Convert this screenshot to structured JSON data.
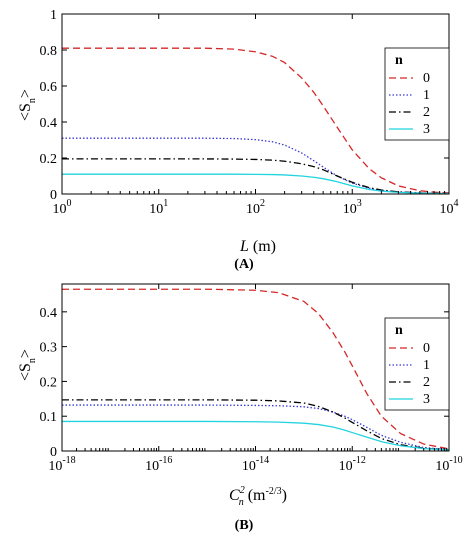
{
  "chart_data": [
    {
      "type": "line",
      "panel_label": "(A)",
      "xscale": "log",
      "xlim": [
        1,
        10000
      ],
      "xticks": [
        {
          "base": "10",
          "exp": "0",
          "value": 1
        },
        {
          "base": "10",
          "exp": "1",
          "value": 10
        },
        {
          "base": "10",
          "exp": "2",
          "value": 100
        },
        {
          "base": "10",
          "exp": "3",
          "value": 1000
        },
        {
          "base": "10",
          "exp": "4",
          "value": 10000
        }
      ],
      "ylim": [
        0,
        1
      ],
      "yticks": [
        "0",
        "0.2",
        "0.4",
        "0.6",
        "0.8",
        "1"
      ],
      "xlabel": {
        "main": "L",
        "unit": " (m)"
      },
      "ylabel": {
        "open": "<S",
        "sub": "n",
        "close": ">"
      },
      "grid": false,
      "legend": {
        "title": "n",
        "position": "top-right"
      },
      "series": [
        {
          "name": "0",
          "color": "#d62728",
          "dash": "dashed",
          "x": [
            1,
            10,
            30,
            60,
            100,
            150,
            200,
            300,
            400,
            500,
            700,
            1000,
            1500,
            2000,
            3000,
            5000,
            7000,
            10000
          ],
          "y": [
            0.81,
            0.81,
            0.81,
            0.805,
            0.79,
            0.765,
            0.73,
            0.645,
            0.565,
            0.49,
            0.37,
            0.245,
            0.14,
            0.09,
            0.045,
            0.018,
            0.01,
            0.006
          ]
        },
        {
          "name": "1",
          "color": "#3a3ad6",
          "dash": "dotted",
          "x": [
            1,
            10,
            30,
            60,
            100,
            150,
            200,
            300,
            400,
            500,
            700,
            1000,
            1500,
            2000,
            3000,
            5000,
            7000,
            10000
          ],
          "y": [
            0.31,
            0.31,
            0.31,
            0.308,
            0.302,
            0.29,
            0.272,
            0.228,
            0.185,
            0.15,
            0.1,
            0.06,
            0.032,
            0.02,
            0.011,
            0.006,
            0.004,
            0.003
          ]
        },
        {
          "name": "2",
          "color": "#000000",
          "dash": "dashdot",
          "x": [
            1,
            10,
            30,
            60,
            100,
            150,
            200,
            300,
            400,
            500,
            700,
            1000,
            1500,
            2000,
            3000,
            5000,
            7000,
            10000
          ],
          "y": [
            0.195,
            0.195,
            0.195,
            0.194,
            0.192,
            0.188,
            0.182,
            0.168,
            0.152,
            0.135,
            0.1,
            0.065,
            0.035,
            0.022,
            0.012,
            0.006,
            0.004,
            0.003
          ]
        },
        {
          "name": "3",
          "color": "#22d3e0",
          "dash": "solid",
          "x": [
            1,
            10,
            30,
            60,
            100,
            150,
            200,
            300,
            400,
            500,
            700,
            1000,
            1500,
            2000,
            3000,
            5000,
            7000,
            10000
          ],
          "y": [
            0.11,
            0.11,
            0.11,
            0.11,
            0.109,
            0.108,
            0.106,
            0.1,
            0.093,
            0.085,
            0.068,
            0.045,
            0.025,
            0.016,
            0.009,
            0.005,
            0.003,
            0.002
          ]
        }
      ]
    },
    {
      "type": "line",
      "panel_label": "(B)",
      "xscale": "log",
      "xlim": [
        1e-18,
        1e-10
      ],
      "xticks": [
        {
          "base": "10",
          "exp": "-18",
          "value": 1e-18
        },
        {
          "base": "10",
          "exp": "-16",
          "value": 1e-16
        },
        {
          "base": "10",
          "exp": "-14",
          "value": 1e-14
        },
        {
          "base": "10",
          "exp": "-12",
          "value": 1e-12
        },
        {
          "base": "10",
          "exp": "-10",
          "value": 1e-10
        }
      ],
      "ylim": [
        0,
        0.48
      ],
      "yticks": [
        "0",
        "0.1",
        "0.2",
        "0.3",
        "0.4"
      ],
      "ytick_values": [
        0,
        0.1,
        0.2,
        0.3,
        0.4
      ],
      "xlabel": {
        "main": "C",
        "sup": "2",
        "sub": "n",
        "unit": " (m",
        "unit_sup": "-2/3",
        "unit_close": ")"
      },
      "ylabel": {
        "open": "<S",
        "sub": "n",
        "close": ">"
      },
      "grid": false,
      "legend": {
        "title": "n",
        "position": "top-right"
      },
      "series": [
        {
          "name": "0",
          "color": "#d62728",
          "dash": "dashed",
          "x": [
            1e-18,
            1e-16,
            1e-15,
            1e-14,
            3e-14,
            1e-13,
            2e-13,
            4e-13,
            7e-13,
            1e-12,
            2e-12,
            4e-12,
            1e-11,
            3e-11,
            1e-10
          ],
          "y": [
            0.465,
            0.465,
            0.465,
            0.462,
            0.455,
            0.43,
            0.395,
            0.34,
            0.285,
            0.245,
            0.165,
            0.1,
            0.05,
            0.02,
            0.006
          ]
        },
        {
          "name": "1",
          "color": "#3a3ad6",
          "dash": "dotted",
          "x": [
            1e-18,
            1e-16,
            1e-15,
            1e-14,
            3e-14,
            1e-13,
            2e-13,
            4e-13,
            7e-13,
            1e-12,
            2e-12,
            4e-12,
            1e-11,
            3e-11,
            1e-10
          ],
          "y": [
            0.132,
            0.132,
            0.132,
            0.131,
            0.13,
            0.127,
            0.122,
            0.112,
            0.1,
            0.09,
            0.068,
            0.045,
            0.025,
            0.01,
            0.004
          ]
        },
        {
          "name": "2",
          "color": "#000000",
          "dash": "dashdot",
          "x": [
            1e-18,
            1e-16,
            1e-15,
            1e-14,
            3e-14,
            1e-13,
            2e-13,
            4e-13,
            7e-13,
            1e-12,
            2e-12,
            4e-12,
            1e-11,
            3e-11,
            1e-10
          ],
          "y": [
            0.147,
            0.147,
            0.147,
            0.146,
            0.144,
            0.138,
            0.128,
            0.112,
            0.095,
            0.082,
            0.058,
            0.036,
            0.018,
            0.008,
            0.003
          ]
        },
        {
          "name": "3",
          "color": "#22d3e0",
          "dash": "solid",
          "x": [
            1e-18,
            1e-16,
            1e-15,
            1e-14,
            3e-14,
            1e-13,
            2e-13,
            4e-13,
            7e-13,
            1e-12,
            2e-12,
            4e-12,
            1e-11,
            3e-11,
            1e-10
          ],
          "y": [
            0.085,
            0.085,
            0.085,
            0.084,
            0.083,
            0.08,
            0.076,
            0.069,
            0.06,
            0.053,
            0.04,
            0.027,
            0.015,
            0.007,
            0.003
          ]
        }
      ]
    }
  ]
}
